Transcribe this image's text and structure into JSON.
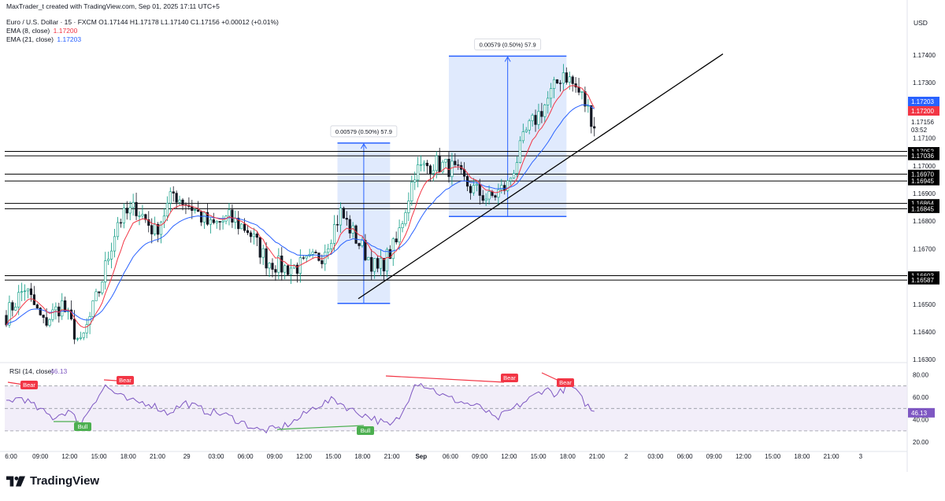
{
  "header": {
    "creator_line": "MaxTrader_t created with TradingView.com, Sep 01, 2025 17:11 UTC+5",
    "symbol_line": "Euro / U.S. Dollar · 15 · FXCM  O1.17144  H1.17178  L1.17140  C1.17156  +0.00012 (+0.01%)",
    "ema8_label": "EMA (8, close)",
    "ema8_value": "1.17200",
    "ema21_label": "EMA (21, close)",
    "ema21_value": "1.17203"
  },
  "brand": {
    "name": "TradingView"
  },
  "colors": {
    "up": "#089981",
    "down": "#131722",
    "ema8": "#f23645",
    "ema21": "#2962ff",
    "measure_fill": "#dbe6fd",
    "measure_stroke": "#2962ff",
    "rsi_line": "#7e57c2",
    "rsi_band": "#ede7f6",
    "bear": "#f23645",
    "bull": "#4caf50"
  },
  "chart_data": [
    {
      "type": "candlestick",
      "symbol": "EURUSD",
      "interval": "15",
      "currency": "USD",
      "ylim": [
        1.1625,
        1.1745
      ],
      "y_ticks": [
        "1.17400",
        "1.17300",
        "1.17200",
        "1.17100",
        "1.17000",
        "1.16900",
        "1.16800",
        "1.16700",
        "1.16600",
        "1.16500",
        "1.16400",
        "1.16300"
      ],
      "x_ticks": [
        "6:00",
        "09:00",
        "12:00",
        "15:00",
        "18:00",
        "21:00",
        "29",
        "03:00",
        "06:00",
        "09:00",
        "12:00",
        "15:00",
        "18:00",
        "21:00",
        "Sep",
        "06:00",
        "09:00",
        "12:00",
        "15:00",
        "18:00",
        "21:00",
        "2",
        "03:00",
        "06:00",
        "09:00",
        "12:00",
        "15:00",
        "18:00",
        "21:00",
        "3"
      ],
      "horizontal_levels": [
        "1.17052",
        "1.17036",
        "1.16970",
        "1.16945",
        "1.16864",
        "1.16845",
        "1.16603",
        "1.16587"
      ],
      "price_badges": [
        {
          "label": "1.17203",
          "value": 1.17203,
          "kind": "ema21"
        },
        {
          "label": "1.17200",
          "value": 1.172,
          "kind": "ema8"
        },
        {
          "label": "1.17156",
          "value": 1.17156,
          "kind": "last"
        },
        {
          "label": "03:52",
          "value": 1.17125,
          "kind": "countdown"
        }
      ],
      "measurements": [
        {
          "label": "0.00579 (0.50%) 57.9",
          "from": 1.16503,
          "to": 1.17082
        },
        {
          "label": "0.00579 (0.50%) 57.9",
          "from": 1.16817,
          "to": 1.17396
        }
      ],
      "trendline": {
        "from": {
          "bar": 0,
          "price": 1.1652
        },
        "to": {
          "bar": 1,
          "price": 1.1737
        }
      },
      "anchors": [
        [
          0,
          1.1646
        ],
        [
          6,
          1.1656
        ],
        [
          12,
          1.1643
        ],
        [
          18,
          1.165
        ],
        [
          24,
          1.1635
        ],
        [
          30,
          1.1655
        ],
        [
          36,
          1.168
        ],
        [
          42,
          1.1685
        ],
        [
          48,
          1.1676
        ],
        [
          54,
          1.169
        ],
        [
          60,
          1.1685
        ],
        [
          66,
          1.1678
        ],
        [
          72,
          1.1681
        ],
        [
          78,
          1.1677
        ],
        [
          84,
          1.1666
        ],
        [
          90,
          1.1663
        ],
        [
          96,
          1.1664
        ],
        [
          102,
          1.1668
        ],
        [
          108,
          1.1683
        ],
        [
          114,
          1.1672
        ],
        [
          120,
          1.1662
        ],
        [
          126,
          1.1672
        ],
        [
          132,
          1.1698
        ],
        [
          138,
          1.1701
        ],
        [
          144,
          1.1699
        ],
        [
          150,
          1.1692
        ],
        [
          156,
          1.1688
        ],
        [
          162,
          1.1693
        ],
        [
          168,
          1.1712
        ],
        [
          174,
          1.1722
        ],
        [
          180,
          1.1734
        ],
        [
          186,
          1.1725
        ],
        [
          190,
          1.1715
        ]
      ]
    },
    {
      "type": "line",
      "title": "RSI (14, close)",
      "value": "46.13",
      "ylim": [
        10,
        90
      ],
      "y_ticks": [
        "80.00",
        "60.00",
        "40.00",
        "20.00"
      ],
      "band": [
        30,
        70
      ],
      "midline": 50,
      "anchors": [
        [
          0,
          56
        ],
        [
          5,
          60
        ],
        [
          10,
          50
        ],
        [
          15,
          42
        ],
        [
          20,
          48
        ],
        [
          24,
          36
        ],
        [
          28,
          55
        ],
        [
          32,
          70
        ],
        [
          36,
          62
        ],
        [
          40,
          56
        ],
        [
          46,
          55
        ],
        [
          52,
          46
        ],
        [
          58,
          55
        ],
        [
          64,
          48
        ],
        [
          70,
          45
        ],
        [
          76,
          38
        ],
        [
          82,
          30
        ],
        [
          88,
          32
        ],
        [
          94,
          40
        ],
        [
          100,
          52
        ],
        [
          106,
          58
        ],
        [
          112,
          48
        ],
        [
          118,
          42
        ],
        [
          124,
          34
        ],
        [
          128,
          45
        ],
        [
          132,
          74
        ],
        [
          136,
          70
        ],
        [
          142,
          60
        ],
        [
          148,
          55
        ],
        [
          154,
          50
        ],
        [
          158,
          40
        ],
        [
          164,
          50
        ],
        [
          170,
          60
        ],
        [
          174,
          68
        ],
        [
          178,
          62
        ],
        [
          182,
          72
        ],
        [
          186,
          58
        ],
        [
          190,
          46
        ]
      ],
      "divergences": [
        {
          "label": "Bear",
          "kind": "bear"
        },
        {
          "label": "Bear",
          "kind": "bear"
        },
        {
          "label": "Bear",
          "kind": "bear"
        },
        {
          "label": "Bear",
          "kind": "bear"
        },
        {
          "label": "Bull",
          "kind": "bull"
        },
        {
          "label": "Bull",
          "kind": "bull"
        }
      ]
    }
  ]
}
